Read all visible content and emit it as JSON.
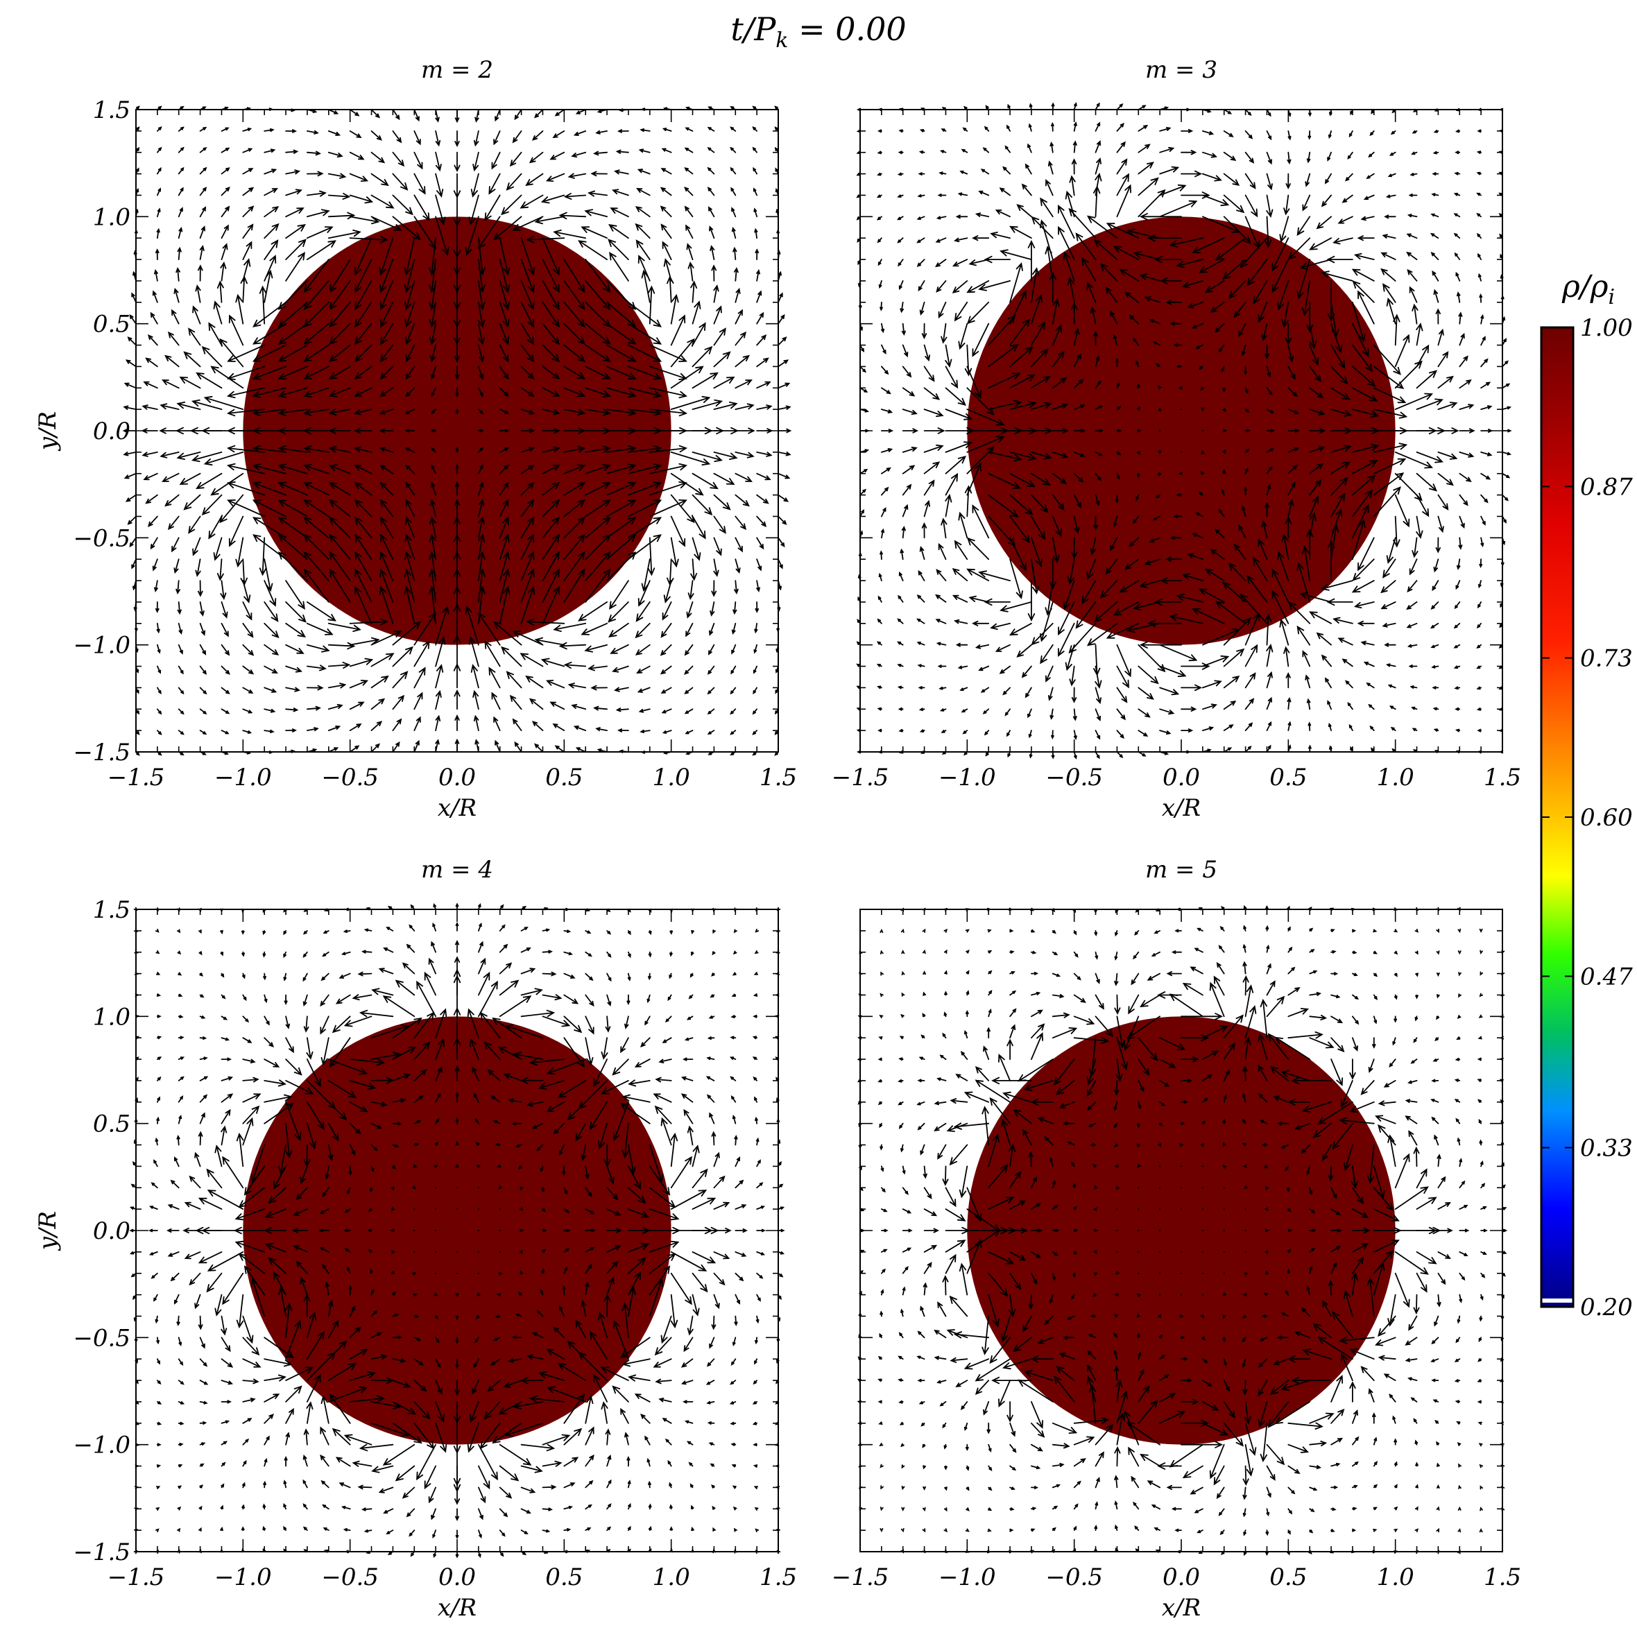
{
  "figure": {
    "title": "t/P_k = 0.00",
    "title_parts": {
      "t": "t/",
      "p": "P",
      "sub": "k",
      "rest": " = 0.00"
    }
  },
  "colors": {
    "disk": "#6e0000",
    "arrow": "#000000",
    "frame": "#000000",
    "colormap": [
      "#000080",
      "#0000ff",
      "#0090ff",
      "#00c060",
      "#30ff00",
      "#ffff00",
      "#ffa000",
      "#ff2000",
      "#e00000",
      "#a00000",
      "#6e0000"
    ]
  },
  "chart_data": [
    {
      "type": "vector_field",
      "title": "m = 2",
      "m": 2,
      "xlabel": "x/R",
      "ylabel": "y/R",
      "xlim": [
        -1.5,
        1.5
      ],
      "ylim": [
        -1.5,
        1.5
      ],
      "xticks": [
        "−1.5",
        "−1.0",
        "−0.5",
        "0.0",
        "0.5",
        "1.0",
        "1.5"
      ],
      "yticks": [
        "−1.5",
        "−1.0",
        "−0.5",
        "0.0",
        "0.5",
        "1.0",
        "1.5"
      ],
      "disk_radius": 1.0,
      "density": 1.0
    },
    {
      "type": "vector_field",
      "title": "m = 3",
      "m": 3,
      "xlabel": "x/R",
      "ylabel": "",
      "xlim": [
        -1.5,
        1.5
      ],
      "ylim": [
        -1.5,
        1.5
      ],
      "xticks": [
        "−1.5",
        "−1.0",
        "−0.5",
        "0.0",
        "0.5",
        "1.0",
        "1.5"
      ],
      "yticks": [],
      "disk_radius": 1.0,
      "density": 1.0
    },
    {
      "type": "vector_field",
      "title": "m = 4",
      "m": 4,
      "xlabel": "x/R",
      "ylabel": "y/R",
      "xlim": [
        -1.5,
        1.5
      ],
      "ylim": [
        -1.5,
        1.5
      ],
      "xticks": [
        "−1.5",
        "−1.0",
        "−0.5",
        "0.0",
        "0.5",
        "1.0",
        "1.5"
      ],
      "yticks": [
        "−1.5",
        "−1.0",
        "−0.5",
        "0.0",
        "0.5",
        "1.0",
        "1.5"
      ],
      "disk_radius": 1.0,
      "density": 1.0
    },
    {
      "type": "vector_field",
      "title": "m = 5",
      "m": 5,
      "xlabel": "x/R",
      "ylabel": "",
      "xlim": [
        -1.5,
        1.5
      ],
      "ylim": [
        -1.5,
        1.5
      ],
      "xticks": [
        "−1.5",
        "−1.0",
        "−0.5",
        "0.0",
        "0.5",
        "1.0",
        "1.5"
      ],
      "yticks": [],
      "disk_radius": 1.0,
      "density": 1.0
    }
  ],
  "colorbar": {
    "label": "ρ/ρ_i",
    "label_parts": {
      "main": "ρ/ρ",
      "sub": "i"
    },
    "range": [
      0.2,
      1.0
    ],
    "ticks": [
      "1.00",
      "0.87",
      "0.73",
      "0.60",
      "0.47",
      "0.33",
      "0.20"
    ]
  }
}
